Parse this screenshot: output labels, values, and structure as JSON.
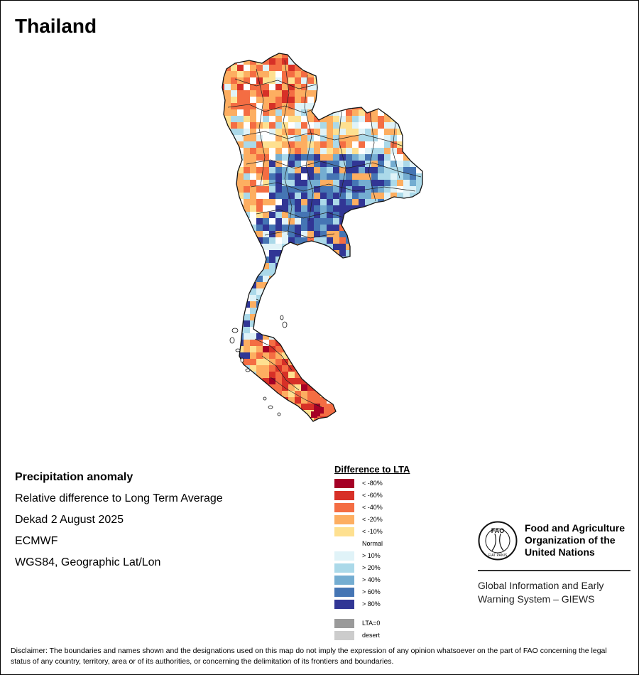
{
  "map": {
    "title": "Thailand"
  },
  "info": {
    "heading": "Precipitation anomaly",
    "subtitle": "Relative difference to Long Term Average",
    "period": "Dekad 2 August 2025",
    "source": "ECMWF",
    "projection": "WGS84, Geographic Lat/Lon"
  },
  "legend": {
    "title": "Difference to LTA",
    "items": [
      {
        "label": "< -80%",
        "color": "#a50026"
      },
      {
        "label": "< -60%",
        "color": "#d73027"
      },
      {
        "label": "< -40%",
        "color": "#f46d43"
      },
      {
        "label": "< -20%",
        "color": "#fdae61"
      },
      {
        "label": "< -10%",
        "color": "#fee090"
      },
      {
        "label": "Normal",
        "color": "#ffffff"
      },
      {
        "label": "> 10%",
        "color": "#e0f3f8"
      },
      {
        "label": "> 20%",
        "color": "#abd9e9"
      },
      {
        "label": "> 40%",
        "color": "#74add1"
      },
      {
        "label": "> 60%",
        "color": "#4575b4"
      },
      {
        "label": "> 80%",
        "color": "#313695"
      }
    ],
    "extra": [
      {
        "label": "LTA=0",
        "color": "#9a9a9a"
      },
      {
        "label": "desert",
        "color": "#cccccc"
      }
    ]
  },
  "org": {
    "seal_text": "FAO",
    "seal_motto": "FIAT PANIS",
    "name_lines": [
      "Food and Agriculture",
      "Organization of the",
      "United Nations"
    ],
    "system_lines": [
      "Global Information and Early",
      "Warning System – GIEWS"
    ]
  },
  "disclaimer": {
    "text": "Disclaimer: The boundaries and names shown and the designations used on this map do not imply the expression of any opinion whatsoever on the part of FAO concerning the legal status of any country, territory, area or of its authorities, or concerning the delimitation of its frontiers and boundaries."
  }
}
